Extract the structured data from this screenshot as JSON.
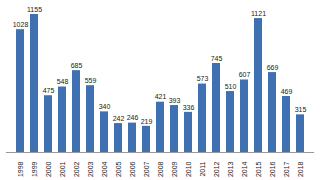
{
  "chart_data": {
    "type": "bar",
    "categories": [
      "1998",
      "1999",
      "2000",
      "2001",
      "2002",
      "2003",
      "2004",
      "2005",
      "2006",
      "2007",
      "2008",
      "2009",
      "2010",
      "2011",
      "2012",
      "2013",
      "2014",
      "2015",
      "2016",
      "2017",
      "2018"
    ],
    "values": [
      1028,
      1155,
      475,
      548,
      685,
      559,
      340,
      242,
      246,
      219,
      421,
      393,
      336,
      573,
      745,
      510,
      607,
      1121,
      669,
      469,
      315
    ],
    "color": "#3e70b2",
    "ylim": [
      0,
      1155
    ],
    "data_labels": true,
    "tick_labels": "x",
    "grid": false
  }
}
